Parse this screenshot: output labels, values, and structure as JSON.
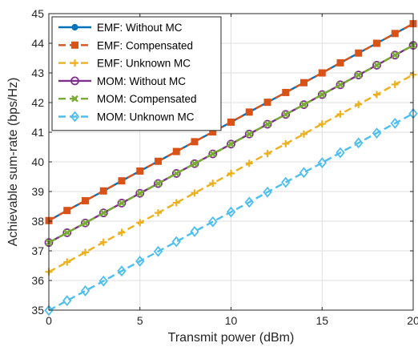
{
  "chart_data": {
    "type": "line",
    "title": "",
    "xlabel": "Transmit power (dBm)",
    "ylabel": "Achievable sum-rate (bps/Hz)",
    "xlim": [
      0,
      20
    ],
    "ylim": [
      35,
      45
    ],
    "xticks": [
      "0",
      "5",
      "10",
      "15",
      "20"
    ],
    "yticks": [
      "35",
      "36",
      "37",
      "38",
      "39",
      "40",
      "41",
      "42",
      "43",
      "44",
      "45"
    ],
    "grid": true,
    "legend_position": "top-left",
    "x": [
      0,
      1,
      2,
      3,
      4,
      5,
      6,
      7,
      8,
      9,
      10,
      11,
      12,
      13,
      14,
      15,
      16,
      17,
      18,
      19,
      20
    ],
    "series": [
      {
        "name": "EMF: Without MC",
        "color": "#0072BD",
        "dash": "solid",
        "marker": "circle",
        "values": [
          38.02,
          38.36,
          38.69,
          39.02,
          39.36,
          39.69,
          40.02,
          40.35,
          40.68,
          41.01,
          41.34,
          41.68,
          42.01,
          42.34,
          42.67,
          43.0,
          43.34,
          43.67,
          44.0,
          44.33,
          44.66
        ]
      },
      {
        "name": "EMF: Compensated",
        "color": "#D95319",
        "dash": "dashed",
        "marker": "square",
        "values": [
          38.02,
          38.36,
          38.69,
          39.02,
          39.36,
          39.69,
          40.02,
          40.35,
          40.68,
          41.01,
          41.34,
          41.68,
          42.01,
          42.34,
          42.67,
          43.0,
          43.34,
          43.67,
          44.0,
          44.33,
          44.66
        ]
      },
      {
        "name": "EMF: Unknown MC",
        "color": "#EDB120",
        "dash": "dashed",
        "marker": "plus",
        "values": [
          36.29,
          36.62,
          36.95,
          37.29,
          37.62,
          37.95,
          38.28,
          38.62,
          38.95,
          39.28,
          39.61,
          39.95,
          40.28,
          40.61,
          40.94,
          41.28,
          41.61,
          41.94,
          42.27,
          42.61,
          42.94
        ]
      },
      {
        "name": "MOM: Without MC",
        "color": "#7E2F8E",
        "dash": "solid",
        "marker": "circle-open",
        "values": [
          37.28,
          37.61,
          37.94,
          38.28,
          38.61,
          38.94,
          39.27,
          39.61,
          39.94,
          40.27,
          40.6,
          40.94,
          41.27,
          41.6,
          41.93,
          42.27,
          42.6,
          42.93,
          43.26,
          43.6,
          43.93
        ]
      },
      {
        "name": "MOM: Compensated",
        "color": "#77AC30",
        "dash": "dashed",
        "marker": "x",
        "values": [
          37.28,
          37.61,
          37.94,
          38.28,
          38.61,
          38.94,
          39.27,
          39.61,
          39.94,
          40.27,
          40.6,
          40.94,
          41.27,
          41.6,
          41.93,
          42.27,
          42.6,
          42.93,
          43.26,
          43.6,
          43.93
        ]
      },
      {
        "name": "MOM: Unknown MC",
        "color": "#4DBEEE",
        "dash": "dashed",
        "marker": "diamond",
        "values": [
          34.99,
          35.32,
          35.65,
          35.98,
          36.32,
          36.65,
          36.98,
          37.31,
          37.65,
          37.98,
          38.31,
          38.64,
          38.98,
          39.31,
          39.64,
          39.97,
          40.31,
          40.64,
          40.97,
          41.3,
          41.63
        ]
      }
    ]
  }
}
